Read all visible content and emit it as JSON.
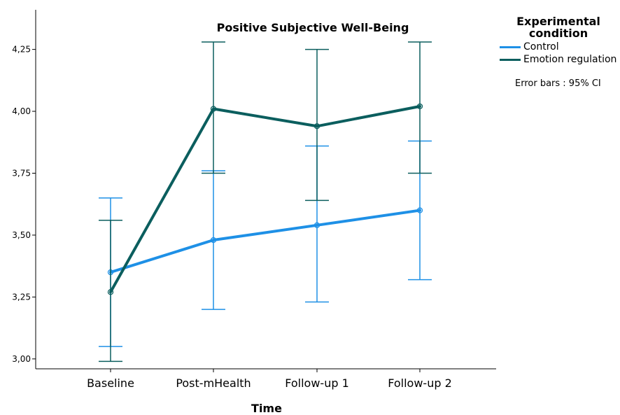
{
  "chart_data": {
    "type": "line",
    "title": "Positive Subjective Well-Being",
    "xlabel": "Time",
    "ylabel": "",
    "categories": [
      "Baseline",
      "Post-mHealth",
      "Follow-up 1",
      "Follow-up 2"
    ],
    "ylim": [
      2.96,
      4.41
    ],
    "yticks": [
      3.0,
      3.25,
      3.5,
      3.75,
      4.0,
      4.25
    ],
    "ytick_labels": [
      "3,00",
      "3,25",
      "3,50",
      "3,75",
      "4,00",
      "4,25"
    ],
    "series": [
      {
        "name": "Control",
        "color": "#1e90e6",
        "values": [
          3.35,
          3.48,
          3.54,
          3.6
        ],
        "ci_low": [
          3.05,
          3.2,
          3.23,
          3.32
        ],
        "ci_high": [
          3.65,
          3.76,
          3.86,
          3.88
        ]
      },
      {
        "name": "Emotion regulation",
        "color": "#0b5e5e",
        "values": [
          3.27,
          4.01,
          3.94,
          4.02
        ],
        "ci_low": [
          2.99,
          3.75,
          3.64,
          3.75
        ],
        "ci_high": [
          3.56,
          4.28,
          4.25,
          4.28
        ]
      }
    ],
    "legend": {
      "title": "Experimental condition",
      "position": "right",
      "note": "Error bars : 95% CI"
    },
    "grid": false
  }
}
